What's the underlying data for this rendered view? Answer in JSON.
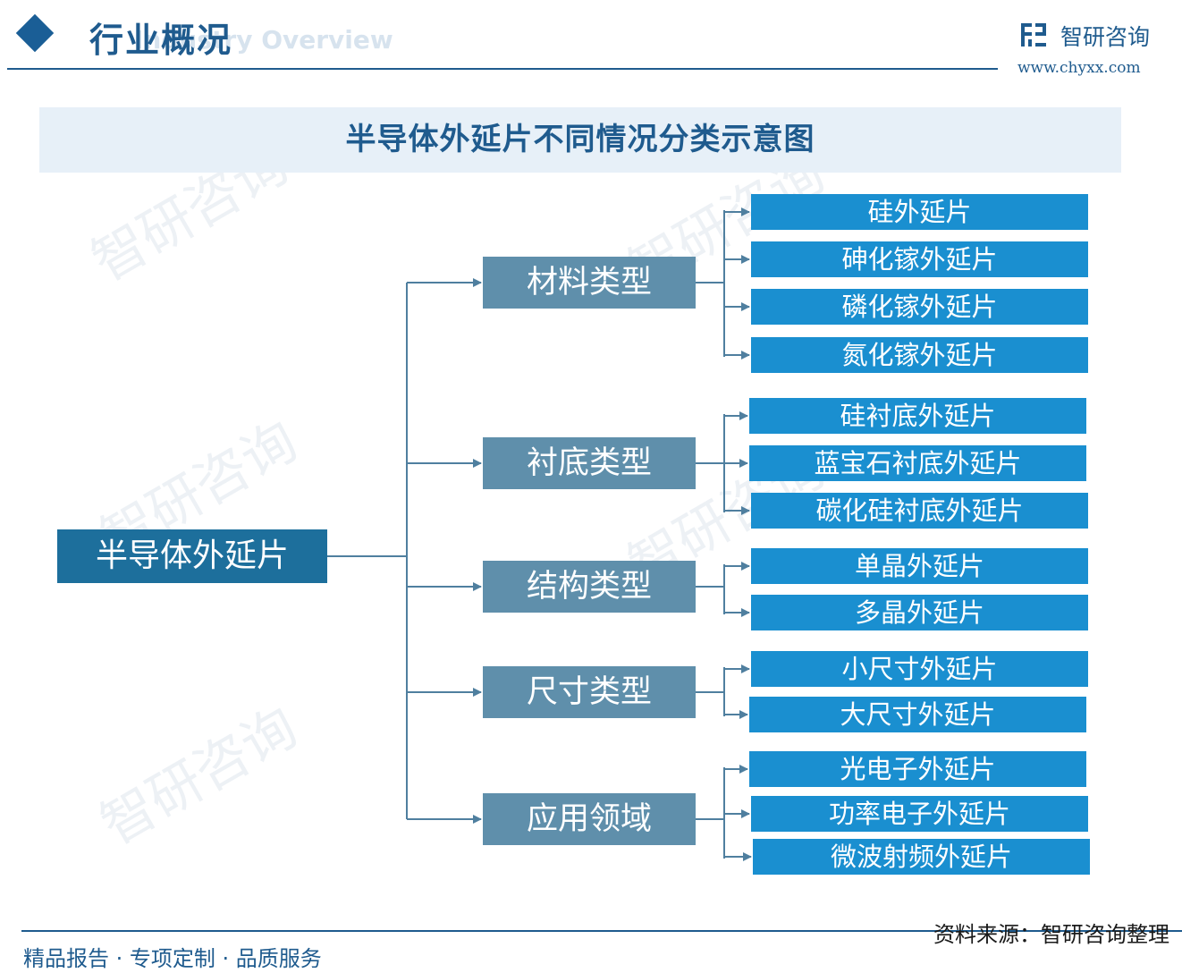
{
  "header": {
    "title": "行业概况",
    "subtitle_en": "Industry Overview",
    "brand_name": "智研咨询",
    "brand_url": "www.chyxx.com",
    "logo_icon": "chyxx-logo-icon"
  },
  "diagram_title": "半导体外延片不同情况分类示意图",
  "root": "半导体外延片",
  "categories": [
    {
      "label": "材料类型",
      "children": [
        "硅外延片",
        "砷化镓外延片",
        "磷化镓外延片",
        "氮化镓外延片"
      ]
    },
    {
      "label": "衬底类型",
      "children": [
        "硅衬底外延片",
        "蓝宝石衬底外延片",
        "碳化硅衬底外延片"
      ]
    },
    {
      "label": "结构类型",
      "children": [
        "单晶外延片",
        "多晶外延片"
      ]
    },
    {
      "label": "尺寸类型",
      "children": [
        "小尺寸外延片",
        "大尺寸外延片"
      ]
    },
    {
      "label": "应用领域",
      "children": [
        "光电子外延片",
        "功率电子外延片",
        "微波射频外延片"
      ]
    }
  ],
  "footer": {
    "slogan": "精品报告 · 专项定制 · 品质服务",
    "source": "资料来源：智研咨询整理"
  },
  "watermark": "智研咨询",
  "colors": {
    "primary": "#1f5b8e",
    "root_box": "#1d6f9c",
    "category_box": "#5f8fab",
    "leaf_box": "#1a8fd0",
    "connector": "#4f7f9f",
    "banner_bg": "#e7f0f8"
  }
}
